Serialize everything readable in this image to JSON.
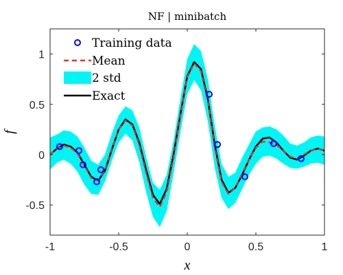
{
  "chart_data": {
    "type": "line",
    "title": "NF | minibatch",
    "xlabel": "x",
    "ylabel": "f",
    "xlim": [
      -1,
      1
    ],
    "ylim": [
      -0.8,
      1.25
    ],
    "xticks": [
      -1,
      -0.5,
      0,
      0.5,
      1
    ],
    "xtick_labels": [
      "-1",
      "-0.5",
      "0",
      "0.5",
      "1"
    ],
    "yticks": [
      -0.5,
      0,
      0.5,
      1
    ],
    "ytick_labels": [
      "-0.5",
      "0",
      "0.5",
      "1"
    ],
    "grid": false,
    "legend_position": "top-left",
    "legend": [
      {
        "key": "training",
        "label": "Training  data"
      },
      {
        "key": "mean",
        "label": "Mean"
      },
      {
        "key": "band",
        "label": "2  std"
      },
      {
        "key": "exact",
        "label": "Exact"
      }
    ],
    "colors": {
      "training": "#0000ff",
      "mean": "#e8312a",
      "band": "#00f5f5",
      "exact": "#000000"
    },
    "x": [
      -1.0,
      -0.95,
      -0.9,
      -0.85,
      -0.8,
      -0.75,
      -0.7,
      -0.65,
      -0.6,
      -0.55,
      -0.5,
      -0.45,
      -0.4,
      -0.35,
      -0.3,
      -0.25,
      -0.2,
      -0.15,
      -0.1,
      -0.05,
      0.0,
      0.05,
      0.1,
      0.15,
      0.2,
      0.25,
      0.3,
      0.35,
      0.4,
      0.45,
      0.5,
      0.55,
      0.6,
      0.65,
      0.7,
      0.75,
      0.8,
      0.85,
      0.9,
      0.95,
      1.0
    ],
    "series": [
      {
        "key": "exact",
        "name": "Exact",
        "values": [
          0.0,
          0.06,
          0.1,
          0.08,
          0.02,
          -0.1,
          -0.22,
          -0.26,
          -0.16,
          0.05,
          0.25,
          0.35,
          0.3,
          0.12,
          -0.15,
          -0.4,
          -0.49,
          -0.34,
          0.0,
          0.4,
          0.78,
          0.92,
          0.85,
          0.55,
          0.1,
          -0.25,
          -0.38,
          -0.33,
          -0.2,
          -0.05,
          0.08,
          0.16,
          0.17,
          0.12,
          0.04,
          -0.03,
          -0.05,
          -0.01,
          0.04,
          0.06,
          0.04
        ]
      },
      {
        "key": "mean",
        "name": "Mean",
        "values": [
          0.0,
          0.06,
          0.09,
          0.07,
          0.01,
          -0.11,
          -0.23,
          -0.26,
          -0.15,
          0.06,
          0.25,
          0.34,
          0.29,
          0.1,
          -0.18,
          -0.43,
          -0.52,
          -0.37,
          -0.03,
          0.38,
          0.77,
          0.91,
          0.83,
          0.53,
          0.07,
          -0.27,
          -0.39,
          -0.33,
          -0.19,
          -0.05,
          0.07,
          0.13,
          0.12,
          0.1,
          0.04,
          -0.02,
          -0.04,
          0.0,
          0.04,
          0.06,
          0.04
        ]
      }
    ],
    "band": {
      "name": "2  std",
      "lower": [
        -0.15,
        -0.08,
        -0.05,
        -0.09,
        -0.17,
        -0.3,
        -0.39,
        -0.4,
        -0.27,
        -0.06,
        0.12,
        0.21,
        0.14,
        -0.07,
        -0.37,
        -0.62,
        -0.72,
        -0.56,
        -0.19,
        0.22,
        0.6,
        0.74,
        0.64,
        0.33,
        -0.13,
        -0.43,
        -0.54,
        -0.48,
        -0.34,
        -0.2,
        -0.09,
        -0.02,
        -0.01,
        -0.04,
        -0.09,
        -0.13,
        -0.14,
        -0.12,
        -0.09,
        -0.08,
        -0.1
      ],
      "upper": [
        0.17,
        0.2,
        0.24,
        0.23,
        0.18,
        0.07,
        -0.06,
        -0.1,
        0.0,
        0.21,
        0.39,
        0.48,
        0.44,
        0.27,
        -0.02,
        -0.28,
        -0.35,
        -0.2,
        0.14,
        0.56,
        0.95,
        1.1,
        1.03,
        0.75,
        0.29,
        -0.09,
        -0.22,
        -0.18,
        -0.03,
        0.1,
        0.23,
        0.27,
        0.28,
        0.25,
        0.19,
        0.11,
        0.09,
        0.12,
        0.17,
        0.19,
        0.18
      ]
    },
    "training_data": {
      "name": "Training  data",
      "x": [
        -0.93,
        -0.79,
        -0.76,
        -0.66,
        -0.63,
        0.16,
        0.22,
        0.42,
        0.63,
        0.83
      ],
      "y": [
        0.08,
        0.04,
        -0.1,
        -0.27,
        -0.15,
        0.6,
        0.1,
        -0.22,
        0.11,
        -0.04
      ]
    }
  }
}
